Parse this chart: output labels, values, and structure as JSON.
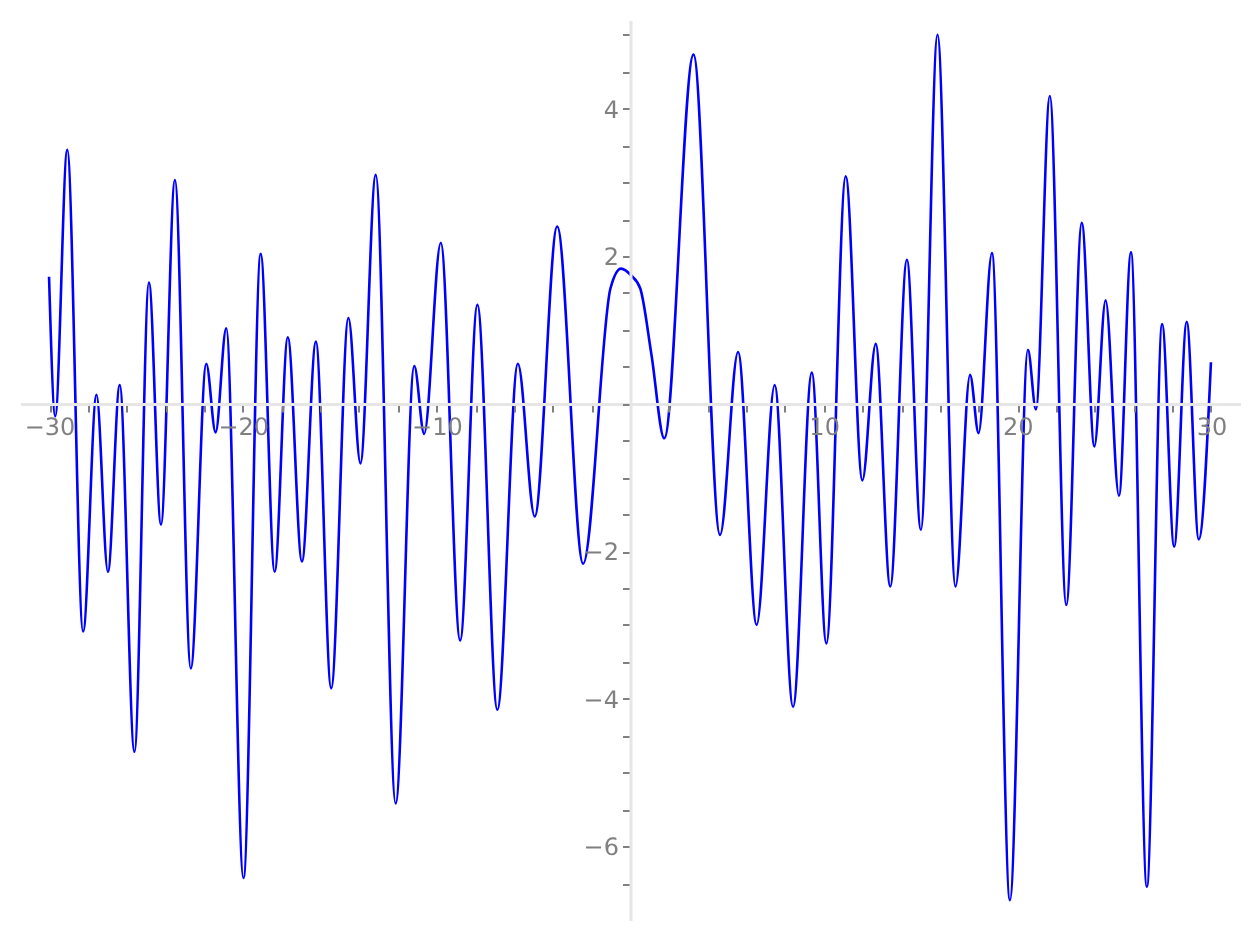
{
  "chart_data": {
    "type": "line",
    "xlim": [
      -31.5,
      31.5
    ],
    "ylim": [
      -7,
      5.2
    ],
    "xticks": [
      {
        "value": -30,
        "label": "−30"
      },
      {
        "value": -28,
        "label": null
      },
      {
        "value": -26,
        "label": null
      },
      {
        "value": -24,
        "label": null
      },
      {
        "value": -22,
        "label": null
      },
      {
        "value": -20,
        "label": "−20"
      },
      {
        "value": -18,
        "label": null
      },
      {
        "value": -16,
        "label": null
      },
      {
        "value": -14,
        "label": null
      },
      {
        "value": -12,
        "label": null
      },
      {
        "value": -10,
        "label": "−10"
      },
      {
        "value": -8,
        "label": null
      },
      {
        "value": -6,
        "label": null
      },
      {
        "value": -4,
        "label": null
      },
      {
        "value": -2,
        "label": null
      },
      {
        "value": 0,
        "label": null
      },
      {
        "value": 2,
        "label": null
      },
      {
        "value": 4,
        "label": null
      },
      {
        "value": 6,
        "label": null
      },
      {
        "value": 8,
        "label": null
      },
      10,
      {
        "value": 12,
        "label": null
      },
      {
        "value": 14,
        "label": null
      },
      {
        "value": 16,
        "label": null
      },
      {
        "value": 18,
        "label": null
      },
      20,
      {
        "value": 22,
        "label": null
      },
      {
        "value": 24,
        "label": null
      },
      {
        "value": 26,
        "label": null
      },
      {
        "value": 28,
        "label": null
      },
      30
    ],
    "yticks": [
      {
        "value": -6.5,
        "label": null
      },
      {
        "value": -6,
        "label": "−6"
      },
      {
        "value": -5.5,
        "label": null
      },
      {
        "value": -5,
        "label": null
      },
      {
        "value": -4.5,
        "label": null
      },
      {
        "value": -4,
        "label": "−4"
      },
      {
        "value": -3.5,
        "label": null
      },
      {
        "value": -3,
        "label": null
      },
      {
        "value": -2.5,
        "label": null
      },
      {
        "value": -2,
        "label": "−2"
      },
      {
        "value": -1.5,
        "label": null
      },
      {
        "value": -1,
        "label": null
      },
      {
        "value": -0.5,
        "label": null
      },
      {
        "value": 0,
        "label": null
      },
      {
        "value": 0.5,
        "label": null
      },
      {
        "value": 1,
        "label": null
      },
      {
        "value": 1.5,
        "label": null
      },
      2,
      {
        "value": 2.5,
        "label": null
      },
      {
        "value": 3,
        "label": null
      },
      {
        "value": 3.5,
        "label": null
      },
      4,
      {
        "value": 4.5,
        "label": null
      },
      {
        "value": 5,
        "label": null
      }
    ],
    "grid": false,
    "marker": "none",
    "line_style": "solid",
    "series": [
      {
        "color": "#0000ff",
        "x": [
          -30,
          -29.68,
          -29.06,
          -28.24,
          -27.55,
          -26.96,
          -26.35,
          -25.59,
          -24.84,
          -24.22,
          -23.5,
          -22.68,
          -21.88,
          -21.4,
          -20.85,
          -19.96,
          -19.07,
          -18.35,
          -17.67,
          -16.94,
          -16.22,
          -15.43,
          -14.54,
          -13.92,
          -13.13,
          -12.1,
          -11.14,
          -10.63,
          -9.77,
          -8.77,
          -7.88,
          -6.85,
          -5.79,
          -4.92,
          -3.76,
          -2.42,
          -1.01,
          -0.46,
          0.05,
          0.53,
          1.11,
          1.77,
          3.28,
          4.65,
          5.58,
          6.54,
          7.47,
          8.42,
          9.39,
          10.14,
          11.14,
          12.0,
          12.69,
          13.44,
          14.3,
          15.02,
          15.88,
          16.81,
          17.56,
          18.0,
          18.69,
          19.62,
          20.55,
          20.96,
          21.68,
          22.53,
          23.33,
          23.98,
          24.56,
          25.25,
          25.87,
          26.69,
          27.48,
          28.1,
          28.75,
          29.37,
          30
        ],
        "values": [
          1.72,
          -0.17,
          3.44,
          -3.09,
          0.12,
          -2.28,
          0.25,
          -4.72,
          1.64,
          -1.64,
          3.03,
          -3.59,
          0.54,
          -0.39,
          1.02,
          -6.43,
          2.03,
          -2.28,
          0.9,
          -2.14,
          0.84,
          -3.86,
          1.16,
          -0.81,
          3.1,
          -5.42,
          0.51,
          -0.41,
          2.18,
          -3.21,
          1.34,
          -4.15,
          0.54,
          -1.53,
          2.4,
          -2.17,
          1.56,
          1.83,
          1.74,
          1.56,
          0.66,
          -0.47,
          4.73,
          -1.78,
          0.7,
          -3.0,
          0.25,
          -4.11,
          0.42,
          -3.25,
          3.08,
          -1.04,
          0.81,
          -2.48,
          1.95,
          -1.71,
          5.0,
          -2.48,
          0.39,
          -0.4,
          2.04,
          -6.73,
          0.73,
          -0.08,
          4.17,
          -2.73,
          2.45,
          -0.58,
          1.4,
          -1.25,
          2.05,
          -6.55,
          1.08,
          -1.94,
          1.11,
          -1.84,
          0.56
        ]
      }
    ]
  }
}
